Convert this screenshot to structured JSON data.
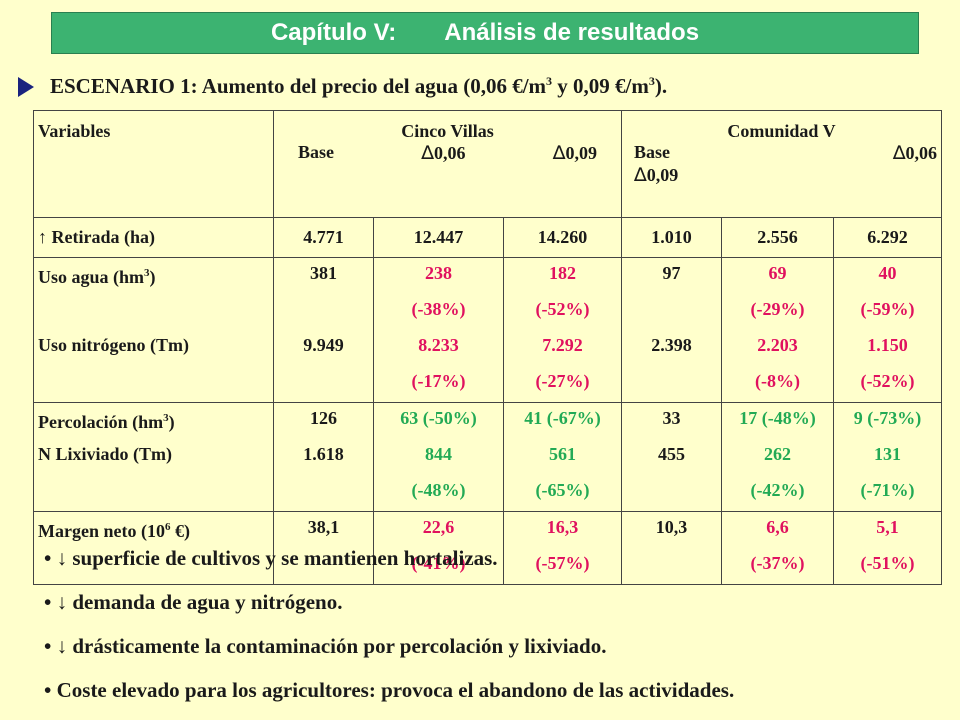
{
  "title": {
    "chapter": "Capítulo V:",
    "subject": "Análisis de resultados"
  },
  "scenario": {
    "text_a": "ESCENARIO 1: Aumento del precio del agua (0,06 €/m",
    "sup1": "3",
    "text_b": " y 0,09 €/m",
    "sup2": "3",
    "text_c": ")."
  },
  "table": {
    "header": {
      "variables": "Variables",
      "group1": "Cinco Villas",
      "group2": "Comunidad V",
      "base": "Base",
      "d006": "0,06",
      "d009": "0,09",
      "delta_symbol": "∆"
    },
    "retirada": {
      "label": "↑ Retirada (ha)",
      "v": [
        "4.771",
        "12.447",
        "14.260",
        "1.010",
        "2.556",
        "6.292"
      ]
    },
    "agua": {
      "label_a": "Uso agua (hm",
      "sup": "3",
      "label_b": ")",
      "v": [
        "381",
        "238",
        "182",
        "97",
        "69",
        "40"
      ],
      "p": [
        "",
        "(-38%)",
        "(-52%)",
        "",
        "(-29%)",
        "(-59%)"
      ]
    },
    "nitrogeno": {
      "label": "Uso nitrógeno (Tm)",
      "v": [
        "9.949",
        "8.233",
        "7.292",
        "2.398",
        "2.203",
        "1.150"
      ],
      "p": [
        "",
        "(-17%)",
        "(-27%)",
        "",
        "(-8%)",
        "(-52%)"
      ]
    },
    "percolacion": {
      "label_a": "Percolación (hm",
      "sup": "3",
      "label_b": ")",
      "v": [
        "126",
        "63 (-50%)",
        "41 (-67%)",
        "33",
        "17 (-48%)",
        "9 (-73%)"
      ]
    },
    "lixiviado": {
      "label": "N Lixiviado (Tm)",
      "v": [
        "1.618",
        "844",
        "561",
        "455",
        "262",
        "131"
      ],
      "p": [
        "",
        "(-48%)",
        "(-65%)",
        "",
        "(-42%)",
        "(-71%)"
      ]
    },
    "margen": {
      "label_a": "Margen neto (10",
      "sup": "6",
      "label_b": " €)",
      "v": [
        "38,1",
        "22,6",
        "16,3",
        "10,3",
        "6,6",
        "5,1"
      ],
      "p": [
        "",
        "(-41%)",
        "(-57%)",
        "",
        "(-37%)",
        "(-51%)"
      ]
    }
  },
  "bullets": [
    "• ↓ superficie de cultivos y se mantienen hortalizas.",
    "• ↓ demanda de agua y nitrógeno.",
    "• ↓ drásticamente la contaminación por percolación y lixiviado.",
    "• Coste elevado para los agricultores: provoca el abandono de las actividades."
  ],
  "colors": {
    "title_bg": "#3cb371",
    "background": "#ffffcc",
    "reduction_red": "#e0115f",
    "reduction_green": "#22aa55"
  }
}
